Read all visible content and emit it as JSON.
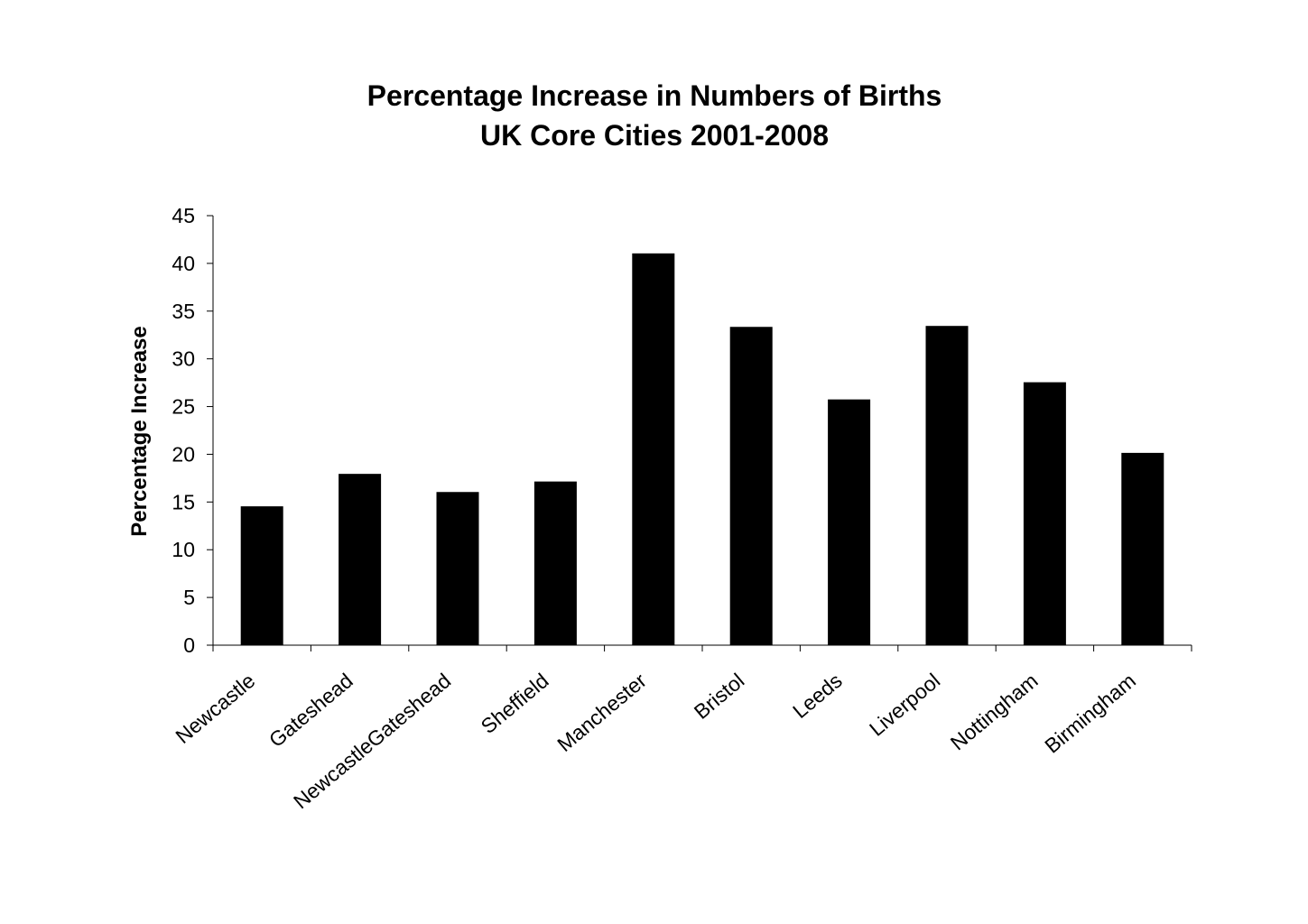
{
  "chart_data": {
    "type": "bar",
    "title": [
      "Percentage Increase in Numbers of Births",
      "UK Core Cities  2001-2008"
    ],
    "ylabel": "Percentage Increase",
    "xlabel": "",
    "categories": [
      "Newcastle",
      "Gateshead",
      "NewcastleGateshead",
      "Sheffield",
      "Manchester",
      "Bristol",
      "Leeds",
      "Liverpool",
      "Nottingham",
      "Birmingham"
    ],
    "values": [
      14.5,
      17.9,
      16.0,
      17.1,
      41.0,
      33.3,
      25.7,
      33.4,
      27.5,
      20.1
    ],
    "ylim": [
      0,
      45
    ],
    "yticks": [
      0,
      5,
      10,
      15,
      20,
      25,
      30,
      35,
      40,
      45
    ],
    "grid": false,
    "legend": "none",
    "bar_color": "#000000"
  }
}
